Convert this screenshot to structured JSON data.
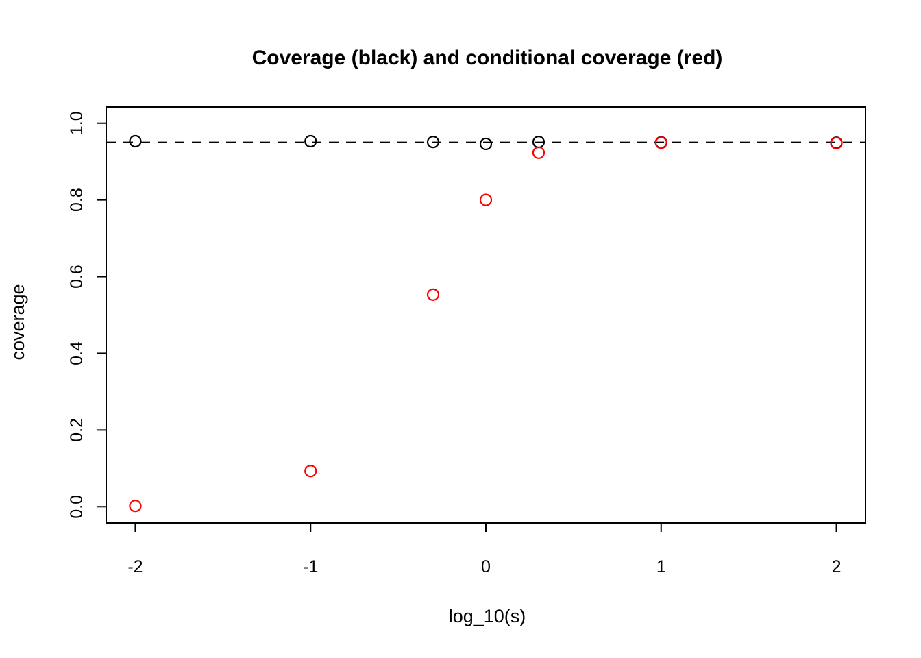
{
  "chart_data": {
    "type": "scatter",
    "title": "Coverage (black) and conditional coverage (red)",
    "xlabel": "log_10(s)",
    "ylabel": "coverage",
    "x": [
      -2,
      -1,
      -0.301,
      0,
      0.301,
      1,
      2
    ],
    "series": [
      {
        "name": "coverage",
        "color": "#000000",
        "marker": "open-circle",
        "values": [
          0.953,
          0.953,
          0.951,
          0.946,
          0.951,
          0.95,
          0.949
        ]
      },
      {
        "name": "conditional coverage",
        "color": "#FF0000",
        "marker": "open-circle",
        "values": [
          0.002,
          0.093,
          0.553,
          0.8,
          0.923,
          0.949,
          0.948
        ]
      }
    ],
    "reference_line": {
      "y": 0.95,
      "style": "dashed",
      "color": "#000000"
    },
    "x_ticks": {
      "values": [
        -2,
        -1,
        0,
        1,
        2
      ],
      "labels": [
        "-2",
        "-1",
        "0",
        "1",
        "2"
      ]
    },
    "y_ticks": {
      "values": [
        0.0,
        0.2,
        0.4,
        0.6,
        0.8,
        1.0
      ],
      "labels": [
        "0.0",
        "0.2",
        "0.4",
        "0.6",
        "0.8",
        "1.0"
      ]
    },
    "xlim": [
      -2.166,
      2.166
    ],
    "ylim": [
      -0.0424,
      1.0424
    ],
    "grid": false,
    "legend_position": "none"
  }
}
